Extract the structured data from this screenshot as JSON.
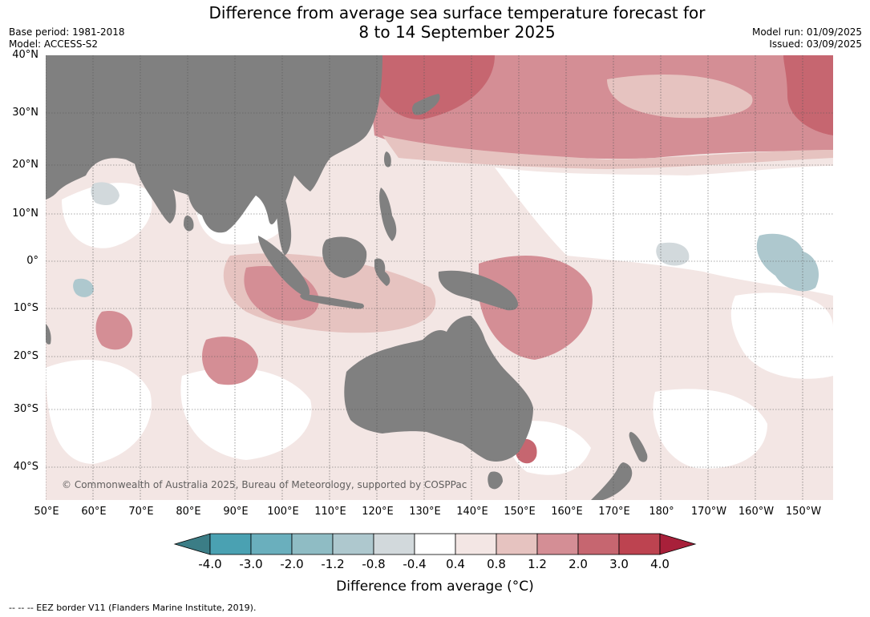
{
  "title_line1": "Difference from average sea surface temperature forecast for",
  "title_line2": "8 to 14 September 2025",
  "base_period": "Base period: 1981-2018",
  "model": "Model: ACCESS-S2",
  "model_run": "Model run: 01/09/2025",
  "issued": "Issued: 03/09/2025",
  "lat_labels": [
    "40°N",
    "30°N",
    "20°N",
    "10°N",
    "0°",
    "10°S",
    "20°S",
    "30°S",
    "40°S"
  ],
  "lon_labels": [
    "50°E",
    "60°E",
    "70°E",
    "80°E",
    "90°E",
    "100°E",
    "110°E",
    "120°E",
    "130°E",
    "140°E",
    "150°E",
    "160°E",
    "170°E",
    "180°",
    "170°W",
    "160°W",
    "150°W"
  ],
  "copyright": "© Commonwealth of Australia 2025, Bureau of Meteorology, supported by COSPPac",
  "colorbar": {
    "ticks": [
      "-4.0",
      "-3.0",
      "-2.0",
      "-1.2",
      "-0.8",
      "-0.4",
      "0.4",
      "0.8",
      "1.2",
      "2.0",
      "3.0",
      "4.0"
    ],
    "colors": [
      "#3b7d86",
      "#4aa1b2",
      "#6aafbd",
      "#8fbcc4",
      "#aec8ce",
      "#d2d9dc",
      "#ffffff",
      "#f3e6e4",
      "#e6c3c0",
      "#d48e95",
      "#c66670",
      "#bd4350",
      "#a8203a"
    ],
    "label": "Difference from average (°C)"
  },
  "eez_note": "-- -- -- EEZ border V11 (Flanders Marine Institute, 2019).",
  "colors": {
    "land": "#808080",
    "grid": "#555555"
  }
}
